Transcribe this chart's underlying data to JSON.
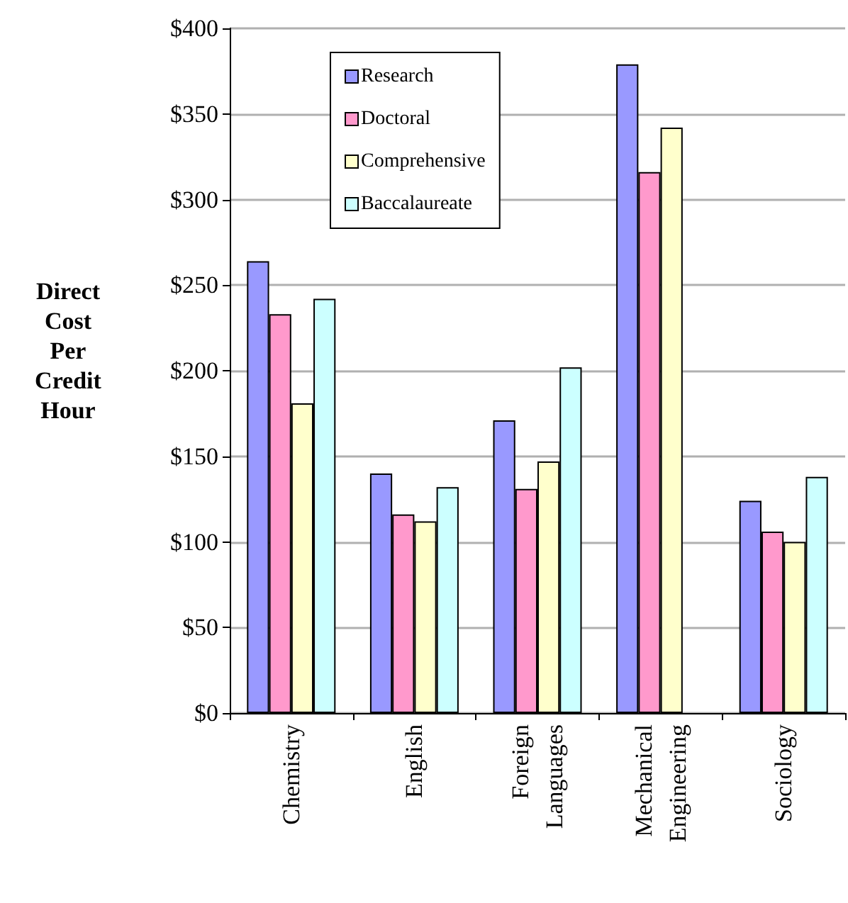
{
  "chart_data": {
    "type": "bar",
    "ylabel": "Direct Cost Per Credit Hour",
    "categories": [
      "Chemistry",
      "English",
      "Foreign Languages",
      "Mechanical Engineering",
      "Sociology"
    ],
    "series": [
      {
        "name": "Research",
        "color": "#9999ff",
        "values": [
          264,
          140,
          171,
          379,
          124
        ]
      },
      {
        "name": "Doctoral",
        "color": "#ff99cc",
        "values": [
          233,
          116,
          131,
          316,
          106
        ]
      },
      {
        "name": "Comprehensive",
        "color": "#ffffcc",
        "values": [
          181,
          112,
          147,
          342,
          100
        ]
      },
      {
        "name": "Baccalaureate",
        "color": "#ccffff",
        "values": [
          242,
          132,
          202,
          null,
          138
        ]
      }
    ],
    "ylim": [
      0,
      400
    ],
    "yticks": [
      {
        "value": 0,
        "label": "$0"
      },
      {
        "value": 50,
        "label": "$50"
      },
      {
        "value": 100,
        "label": "$100"
      },
      {
        "value": 150,
        "label": "$150"
      },
      {
        "value": 200,
        "label": "$200"
      },
      {
        "value": 250,
        "label": "$250"
      },
      {
        "value": 300,
        "label": "$300"
      },
      {
        "value": 350,
        "label": "$350"
      },
      {
        "value": 400,
        "label": "$400"
      }
    ],
    "grid": "y",
    "legend": "top left"
  }
}
